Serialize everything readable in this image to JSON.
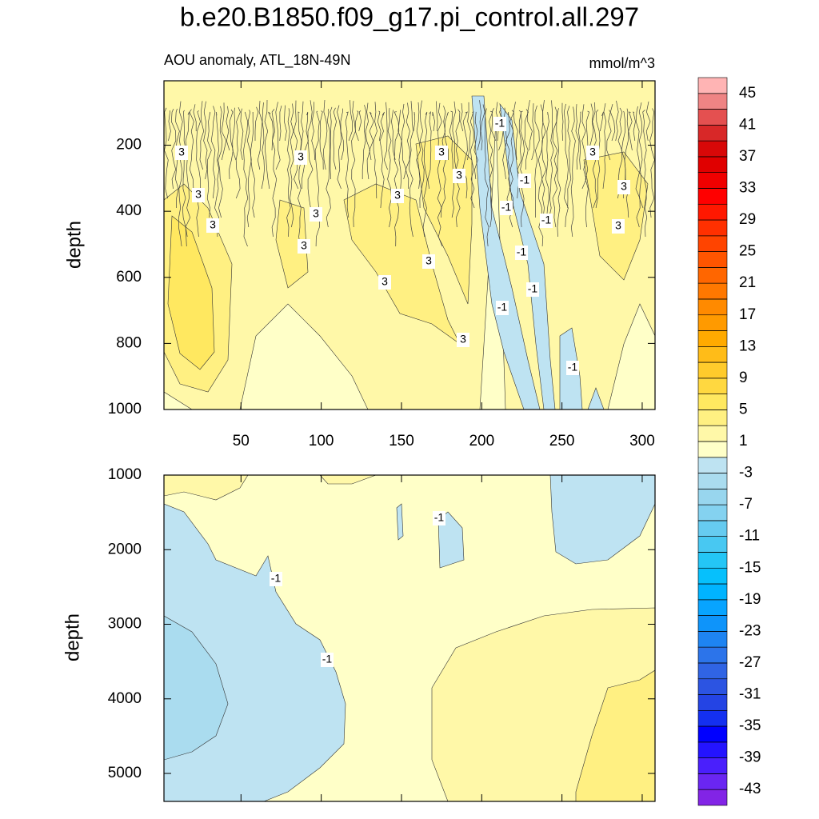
{
  "chart_data": [
    {
      "type": "contour",
      "title": "b.e20.B1850.f09_g17.pi_control.all.297",
      "subtitle_left": "AOU anomaly, ATL_18N-49N",
      "subtitle_right": "mmol/m^3",
      "ylabel": "depth",
      "xlim": [
        2,
        308
      ],
      "ylim": [
        5,
        1000
      ],
      "y_reversed": true,
      "xticks": [
        50,
        100,
        150,
        200,
        250,
        300
      ],
      "yticks": [
        200,
        400,
        600,
        800,
        1000
      ],
      "contour_labels": [
        3,
        3,
        3,
        3,
        3,
        3,
        3,
        3,
        3,
        3,
        3,
        3,
        3,
        3,
        3,
        -1,
        -1,
        -1,
        -1,
        -1,
        -1,
        -1,
        -1
      ]
    },
    {
      "type": "contour",
      "ylabel": "depth",
      "xlim": [
        2,
        308
      ],
      "ylim": [
        1000,
        5375
      ],
      "y_reversed": true,
      "xticks": [
        50,
        100,
        150,
        200,
        250,
        300
      ],
      "xtick_labels_shown": false,
      "yticks": [
        1000,
        2000,
        3000,
        4000,
        5000
      ],
      "contour_labels": [
        -1,
        -1,
        -1
      ]
    }
  ],
  "colorbar": {
    "levels": [
      -43,
      -41,
      -39,
      -37,
      -35,
      -33,
      -31,
      -29,
      -27,
      -25,
      -23,
      -21,
      -19,
      -17,
      -15,
      -13,
      -11,
      -9,
      -7,
      -5,
      -3,
      -1,
      1,
      3,
      5,
      7,
      9,
      11,
      13,
      15,
      17,
      19,
      21,
      23,
      25,
      27,
      29,
      31,
      33,
      35,
      37,
      39,
      41,
      43,
      45
    ],
    "ticks": [
      45,
      41,
      37,
      33,
      29,
      25,
      21,
      17,
      13,
      9,
      5,
      1,
      -3,
      -7,
      -11,
      -15,
      -19,
      -23,
      -27,
      -31,
      -35,
      -39,
      -43
    ],
    "colors": [
      "#8224e6",
      "#6a26f2",
      "#4a1ffc",
      "#2414ff",
      "#0000ff",
      "#1430f0",
      "#2444e4",
      "#2c54e2",
      "#3064e4",
      "#2c74ea",
      "#1e84f2",
      "#0e94fa",
      "#08a4ff",
      "#00b4ff",
      "#06c0fc",
      "#24c6f6",
      "#48c8f2",
      "#66cbf0",
      "#84d2f0",
      "#98d6ee",
      "#aadcef",
      "#bee3f2",
      "#ffffc8",
      "#fff8a8",
      "#fff082",
      "#ffe860",
      "#ffd840",
      "#ffcb2c",
      "#ffbc18",
      "#ffaa00",
      "#ff9a00",
      "#ff8a00",
      "#ff7800",
      "#ff6600",
      "#ff5500",
      "#ff4400",
      "#ff3000",
      "#ff1800",
      "#ff0000",
      "#f00000",
      "#e00000",
      "#d80808",
      "#d82828",
      "#e45050",
      "#ef8484",
      "#ffb4b4"
    ]
  }
}
